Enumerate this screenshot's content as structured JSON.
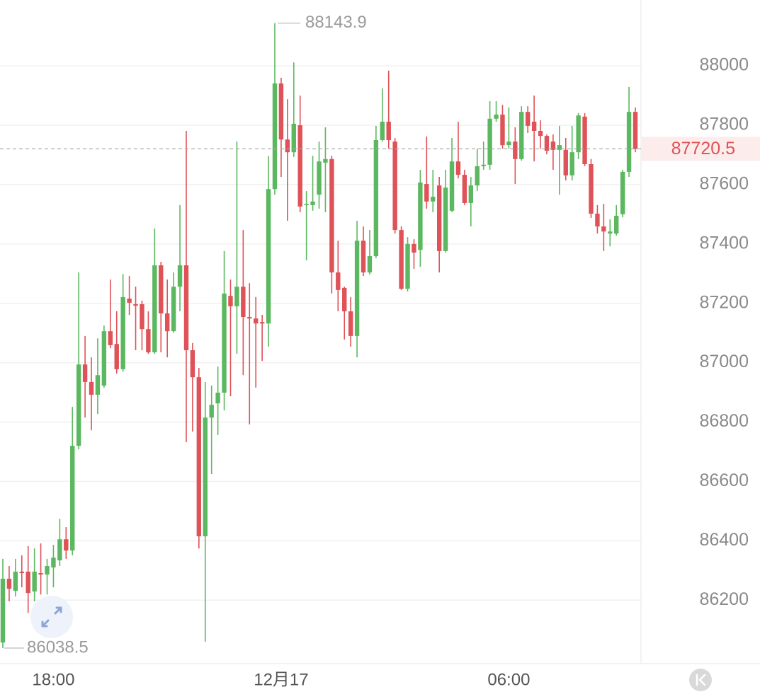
{
  "chart_data": {
    "type": "candlestick",
    "categories": [
      null,
      null,
      null,
      null,
      null,
      null,
      null,
      null,
      "18:00",
      null,
      null,
      null,
      null,
      null,
      null,
      null,
      null,
      null,
      null,
      null,
      null,
      null,
      null,
      null,
      null,
      null,
      null,
      null,
      null,
      null,
      null,
      null,
      null,
      null,
      null,
      null,
      null,
      null,
      null,
      null,
      null,
      null,
      null,
      null,
      "12月17",
      null,
      null,
      null,
      null,
      null,
      null,
      null,
      null,
      null,
      null,
      null,
      null,
      null,
      null,
      null,
      null,
      null,
      null,
      null,
      null,
      null,
      null,
      null,
      null,
      null,
      null,
      null,
      null,
      null,
      null,
      null,
      null,
      null,
      null,
      null,
      "06:00",
      null,
      null,
      null,
      null,
      null,
      null,
      null,
      null,
      null,
      null,
      null,
      null,
      null,
      null,
      null,
      null,
      null,
      null,
      null,
      null
    ],
    "open": [
      86057,
      86272,
      86231,
      86296,
      86296,
      86229,
      86291,
      86286,
      86310,
      86334,
      86405,
      86367,
      86720,
      86994,
      86935,
      86892,
      86923,
      87106,
      87063,
      86978,
      87216,
      87197,
      87197,
      87113,
      87035,
      87328,
      87166,
      87106,
      87256,
      87328,
      87042,
      86951,
      86415,
      86815,
      86863,
      86899,
      87225,
      87190,
      87256,
      87154,
      87149,
      87137,
      87132,
      87585,
      87941,
      87752,
      87709,
      87800,
      87531,
      87531,
      87566,
      87674,
      87686,
      87304,
      87252,
      87173,
      87090,
      87411,
      87304,
      87359,
      87750,
      87812,
      87745,
      87447,
      87249,
      87400,
      87380,
      87602,
      87543,
      87597,
      87376,
      87512,
      87678,
      87633,
      87538,
      87597,
      87662,
      87667,
      87822,
      87836,
      87733,
      87745,
      87686,
      87845,
      87812,
      87781,
      87764,
      87745,
      87717,
      87717,
      87631,
      87709,
      87829,
      87669,
      87502,
      87459,
      87435,
      87435,
      87500,
      87643,
      87845
    ],
    "high": [
      86339,
      86315,
      86339,
      86351,
      86382,
      86374,
      86391,
      86339,
      86386,
      86474,
      86446,
      86851,
      87304,
      87090,
      87018,
      87082,
      87125,
      87280,
      87173,
      87299,
      87292,
      87256,
      87209,
      87173,
      87452,
      87340,
      87280,
      87304,
      87531,
      87781,
      87066,
      86982,
      86935,
      86923,
      86987,
      87376,
      87280,
      87745,
      87447,
      87268,
      87221,
      87161,
      87697,
      88143.9,
      87960,
      87888,
      88012,
      87900,
      87578,
      87697,
      87745,
      87793,
      87697,
      87411,
      87256,
      87221,
      87478,
      87459,
      87447,
      87798,
      87924,
      87984,
      87757,
      87459,
      87423,
      87416,
      87650,
      87762,
      87650,
      87626,
      87650,
      87757,
      87812,
      87650,
      87626,
      87721,
      87745,
      87881,
      87881,
      87869,
      87860,
      87793,
      87864,
      87864,
      87900,
      87817,
      87769,
      87769,
      87798,
      87757,
      87798,
      87841,
      87841,
      87686,
      87531,
      87535,
      87483,
      87531,
      87650,
      87929,
      87860
    ],
    "low": [
      86038.5,
      86196,
      86212,
      86243,
      86157,
      86196,
      86219,
      86219,
      86243,
      86315,
      86339,
      86351,
      86708,
      86815,
      86772,
      86827,
      86916,
      87049,
      86963,
      86970,
      87161,
      87042,
      87042,
      87030,
      87030,
      87035,
      87018,
      87101,
      87173,
      86732,
      86768,
      86374,
      86060,
      86625,
      86756,
      86839,
      86887,
      87030,
      86958,
      86792,
      86916,
      87006,
      87054,
      87566,
      87626,
      87478,
      87693,
      87507,
      87345,
      87512,
      87519,
      87507,
      87233,
      87173,
      87078,
      87054,
      87018,
      87292,
      87297,
      87352,
      87745,
      87721,
      87435,
      87245,
      87240,
      87316,
      87323,
      87519,
      87507,
      87304,
      87371,
      87507,
      87621,
      87531,
      87459,
      87578,
      87650,
      87650,
      87812,
      87721,
      87721,
      87602,
      87681,
      87774,
      87678,
      87721,
      87702,
      87650,
      87566,
      87614,
      87614,
      87686,
      87662,
      87488,
      87435,
      87376,
      87392,
      87428,
      87490,
      87626,
      87709
    ],
    "close": [
      86272,
      86238,
      86296,
      86291,
      86224,
      86296,
      86286,
      86315,
      86343,
      86405,
      86367,
      86720,
      86994,
      86935,
      86892,
      86958,
      87106,
      87059,
      86978,
      87221,
      87202,
      87192,
      87113,
      87035,
      87328,
      87166,
      87106,
      87256,
      87328,
      87042,
      86951,
      86415,
      86815,
      86858,
      86899,
      87233,
      87190,
      87256,
      87154,
      87149,
      87132,
      87132,
      87585,
      87941,
      87752,
      87709,
      87805,
      87526,
      87535,
      87543,
      87678,
      87686,
      87304,
      87245,
      87173,
      87090,
      87411,
      87304,
      87359,
      87750,
      87812,
      87750,
      87447,
      87249,
      87400,
      87371,
      87607,
      87543,
      87559,
      87376,
      87590,
      87678,
      87633,
      87538,
      87597,
      87662,
      87667,
      87822,
      87836,
      87733,
      87745,
      87686,
      87845,
      87798,
      87781,
      87764,
      87714,
      87717,
      87733,
      87631,
      87709,
      87833,
      87669,
      87502,
      87459,
      87442,
      87442,
      87495,
      87643,
      87845,
      87720.5
    ],
    "up_color": "#5cb860",
    "down_color": "#de5258",
    "ylim": [
      85986,
      88222
    ],
    "yticks": [
      86200,
      86400,
      86600,
      86800,
      87000,
      87200,
      87400,
      87600,
      87800,
      88000
    ],
    "grid": true
  }
}
